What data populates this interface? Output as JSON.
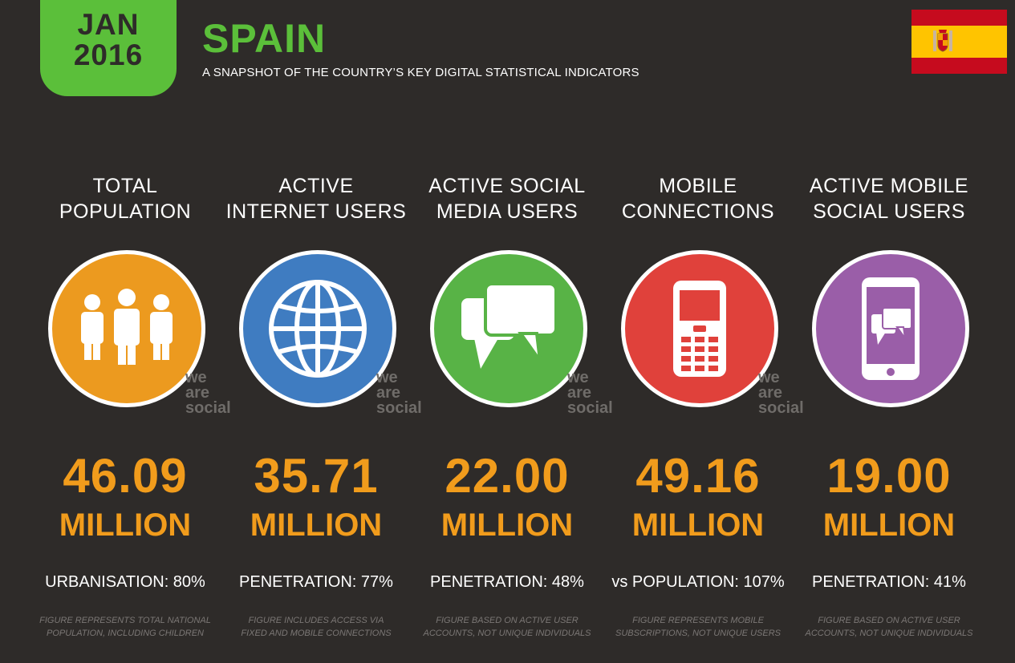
{
  "header": {
    "month": "JAN",
    "year": "2016",
    "title": "SPAIN",
    "subtitle": "A SNAPSHOT OF THE COUNTRY’S KEY DIGITAL STATISTICAL INDICATORS"
  },
  "brand": {
    "line1": "we",
    "line2": "are",
    "line3": "social"
  },
  "colors": {
    "background": "#2e2b29",
    "accent_green": "#5bbf3a",
    "value_orange": "#f19c1c",
    "circle_orange": "#ec9a1f",
    "circle_blue": "#3f7cc1",
    "circle_green": "#58b346",
    "circle_red": "#e0413b",
    "circle_purple": "#9a5ea8"
  },
  "indicators": [
    {
      "label_line1": "TOTAL",
      "label_line2": "POPULATION",
      "icon": "people-icon",
      "value": "46.09",
      "unit": "MILLION",
      "stat": "URBANISATION: 80%",
      "note_line1": "FIGURE REPRESENTS TOTAL NATIONAL",
      "note_line2": "POPULATION, INCLUDING CHILDREN"
    },
    {
      "label_line1": "ACTIVE",
      "label_line2": "INTERNET USERS",
      "icon": "globe-icon",
      "value": "35.71",
      "unit": "MILLION",
      "stat": "PENETRATION: 77%",
      "note_line1": "FIGURE INCLUDES ACCESS VIA",
      "note_line2": "FIXED AND MOBILE CONNECTIONS"
    },
    {
      "label_line1": "ACTIVE SOCIAL",
      "label_line2": "MEDIA USERS",
      "icon": "chat-bubbles-icon",
      "value": "22.00",
      "unit": "MILLION",
      "stat": "PENETRATION: 48%",
      "note_line1": "FIGURE BASED ON ACTIVE USER",
      "note_line2": "ACCOUNTS, NOT UNIQUE INDIVIDUALS"
    },
    {
      "label_line1": "MOBILE",
      "label_line2": "CONNECTIONS",
      "icon": "mobile-phone-icon",
      "value": "49.16",
      "unit": "MILLION",
      "stat": "vs POPULATION: 107%",
      "note_line1": "FIGURE REPRESENTS MOBILE",
      "note_line2": "SUBSCRIPTIONS, NOT UNIQUE USERS"
    },
    {
      "label_line1": "ACTIVE MOBILE",
      "label_line2": "SOCIAL USERS",
      "icon": "smartphone-chat-icon",
      "value": "19.00",
      "unit": "MILLION",
      "stat": "PENETRATION: 41%",
      "note_line1": "FIGURE BASED ON ACTIVE USER",
      "note_line2": "ACCOUNTS, NOT UNIQUE INDIVIDUALS"
    }
  ]
}
